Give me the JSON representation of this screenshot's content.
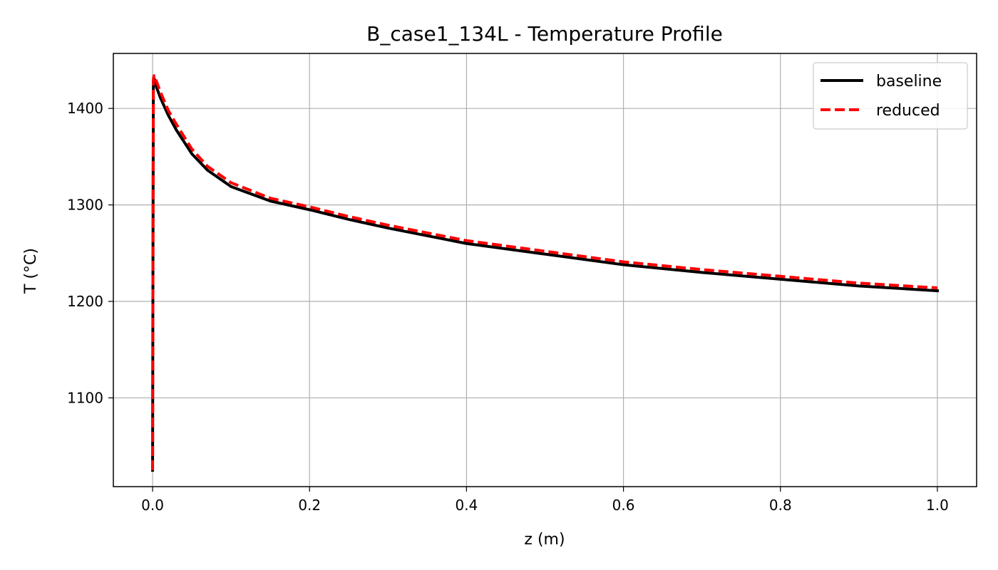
{
  "chart_data": {
    "type": "line",
    "title": "B_case1_134L - Temperature Profile",
    "xlabel": "z (m)",
    "ylabel": "T (°C)",
    "xlim": [
      -0.05,
      1.05
    ],
    "ylim": [
      1008,
      1457
    ],
    "xticks": [
      0.0,
      0.2,
      0.4,
      0.6,
      0.8,
      1.0
    ],
    "xtick_labels": [
      "0.0",
      "0.2",
      "0.4",
      "0.6",
      "0.8",
      "1.0"
    ],
    "yticks": [
      1100,
      1200,
      1300,
      1400
    ],
    "ytick_labels": [
      "1100",
      "1200",
      "1300",
      "1400"
    ],
    "grid": true,
    "legend_position": "upper-right",
    "series": [
      {
        "name": "baseline",
        "color": "#000000",
        "line_style": "solid",
        "x": [
          0.0,
          0.0005,
          0.001,
          0.002,
          0.005,
          0.01,
          0.02,
          0.03,
          0.05,
          0.07,
          0.1,
          0.15,
          0.2,
          0.25,
          0.3,
          0.4,
          0.5,
          0.6,
          0.7,
          0.8,
          0.9,
          1.0
        ],
        "y": [
          1025,
          1250,
          1428,
          1431,
          1422,
          1411,
          1393,
          1378,
          1353,
          1336,
          1319,
          1304,
          1295,
          1285,
          1276,
          1260,
          1249,
          1238,
          1230,
          1223,
          1216,
          1211
        ]
      },
      {
        "name": "reduced",
        "color": "#ff0000",
        "line_style": "dashed",
        "x": [
          0.0,
          0.0005,
          0.001,
          0.002,
          0.005,
          0.01,
          0.02,
          0.03,
          0.05,
          0.07,
          0.1,
          0.15,
          0.2,
          0.25,
          0.3,
          0.4,
          0.5,
          0.6,
          0.7,
          0.8,
          0.9,
          1.0
        ],
        "y": [
          1025,
          1250,
          1431,
          1434,
          1428,
          1417,
          1398,
          1384,
          1358,
          1340,
          1323,
          1307,
          1298,
          1288,
          1279,
          1263,
          1252,
          1241,
          1233,
          1226,
          1219,
          1214
        ]
      }
    ]
  }
}
